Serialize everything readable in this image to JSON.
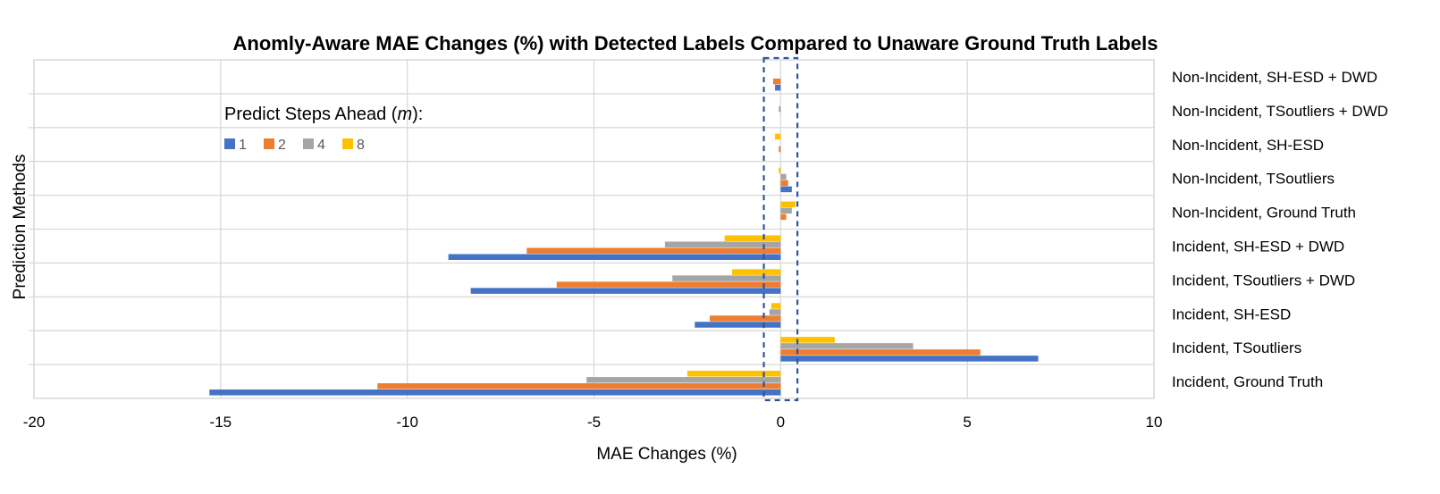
{
  "chart_data": {
    "type": "bar",
    "orientation": "horizontal",
    "title": "Anomly-Aware MAE Changes (%) with Detected Labels Compared to Unaware Ground Truth Labels",
    "xlabel": "MAE Changes (%)",
    "ylabel": "Prediction Methods",
    "xlim": [
      -20,
      10
    ],
    "xticks": [
      -20,
      -15,
      -10,
      -5,
      0,
      5,
      10
    ],
    "xtick_labels": [
      "-20",
      "-15",
      "-10",
      "-5",
      "0",
      "5",
      "10"
    ],
    "grid": "vertical gridlines and horizontal category separators",
    "legend": {
      "title_prefix": "Predict Steps Ahead (",
      "title_var": "m",
      "title_suffix": "):",
      "placement": "upper-left inside plot"
    },
    "categories": [
      "Non-Incident, SH-ESD + DWD",
      "Non-Incident, TSoutliers + DWD",
      "Non-Incident, SH-ESD",
      "Non-Incident, TSoutliers",
      "Non-Incident, Ground Truth",
      "Incident, SH-ESD + DWD",
      "Incident, TSoutliers + DWD",
      "Incident, SH-ESD",
      "Incident, TSoutliers",
      "Incident, Ground Truth"
    ],
    "series": [
      {
        "name": "1",
        "color": "#4472C4",
        "values": [
          -0.15,
          0,
          0,
          0.3,
          0,
          -8.9,
          -8.3,
          -2.3,
          6.9,
          -15.3
        ]
      },
      {
        "name": "2",
        "color": "#ED7D31",
        "values": [
          -0.2,
          0,
          -0.05,
          0.2,
          0.15,
          -6.8,
          -6.0,
          -1.9,
          5.35,
          -10.8
        ]
      },
      {
        "name": "4",
        "color": "#A5A5A5",
        "values": [
          0,
          -0.05,
          0,
          0.15,
          0.3,
          -3.1,
          -2.9,
          -0.3,
          3.55,
          -5.2
        ]
      },
      {
        "name": "8",
        "color": "#FFC000",
        "values": [
          0,
          0,
          -0.15,
          -0.05,
          0.4,
          -1.5,
          -1.3,
          -0.25,
          1.45,
          -2.5
        ]
      }
    ],
    "highlight_band": {
      "x_range": [
        -0.45,
        0.45
      ],
      "style": "dashed",
      "color": "#2F5597"
    },
    "colors": {
      "grid": "#D9D9D9",
      "band": "#2F5597"
    }
  }
}
